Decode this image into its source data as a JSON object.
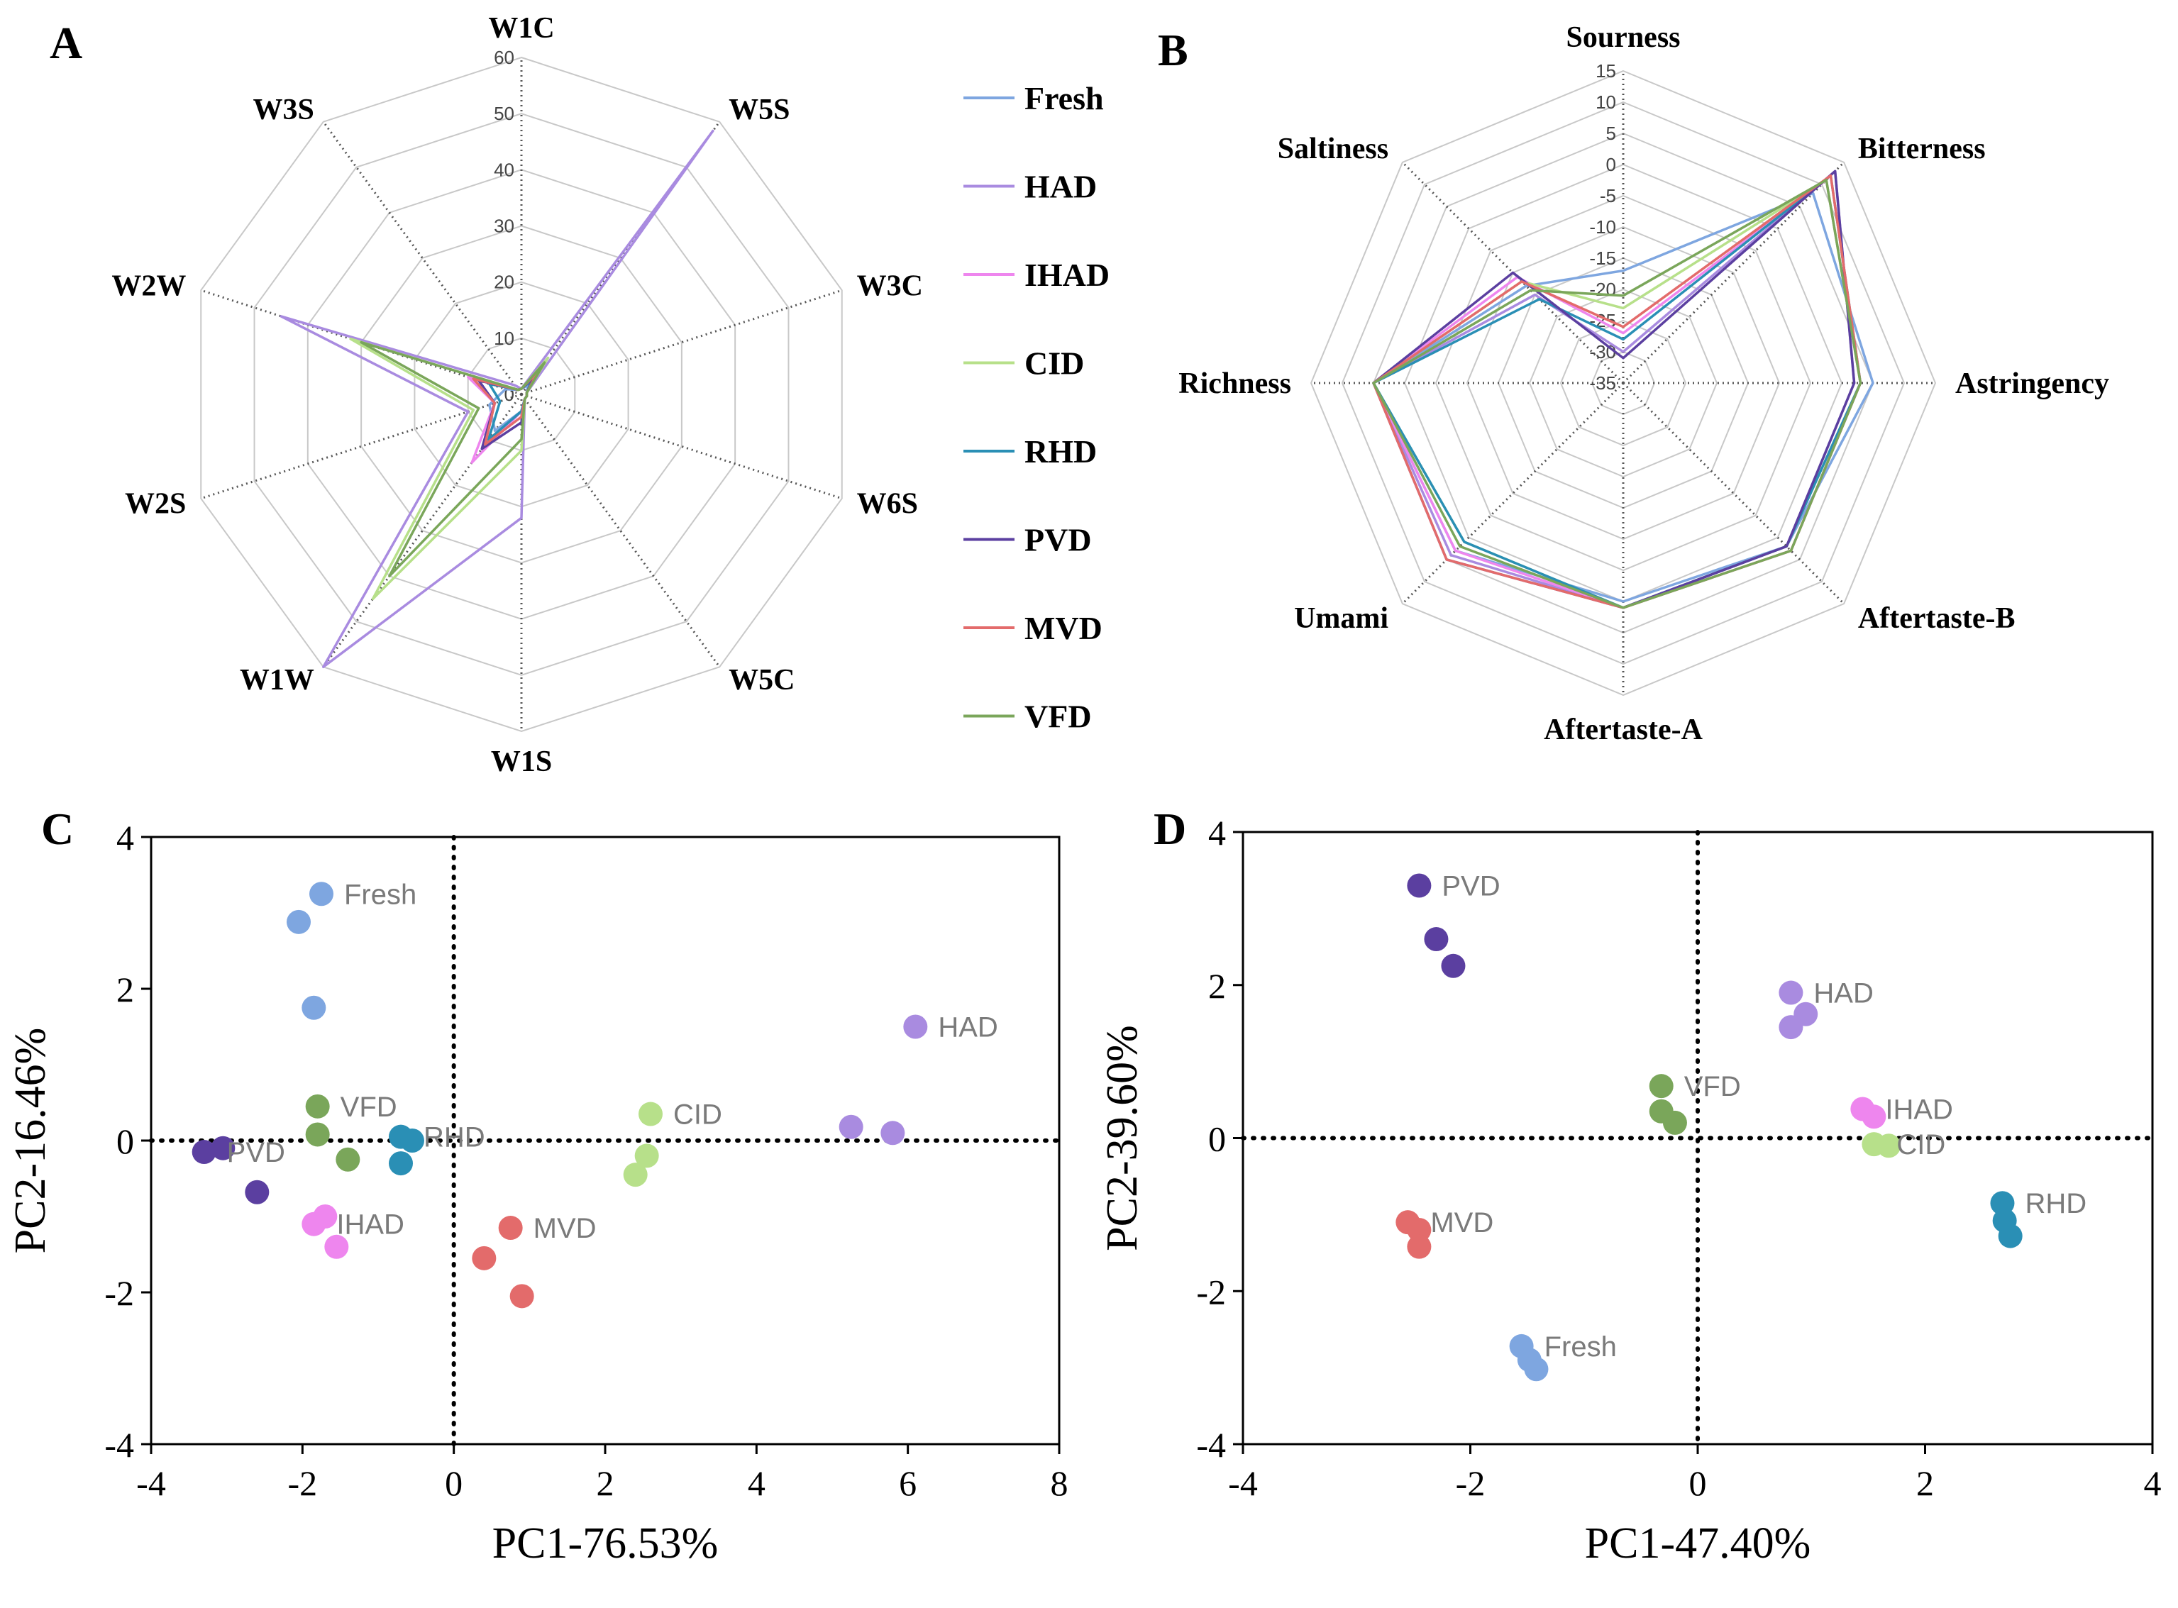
{
  "colors": {
    "Fresh": "#7ea6e0",
    "HAD": "#a98be0",
    "IHAD": "#ee86ee",
    "CID": "#b7e08a",
    "RHD": "#2a8fb5",
    "PVD": "#5b3fa0",
    "MVD": "#e36b6b",
    "VFD": "#7aa65a"
  },
  "chart_data": [
    {
      "panel": "A",
      "type": "radar",
      "axes": [
        "W1C",
        "W5S",
        "W3C",
        "W6S",
        "W5C",
        "W1S",
        "W1W",
        "W2S",
        "W2W",
        "W3S"
      ],
      "rlim": [
        0,
        60
      ],
      "rticks": [
        0,
        10,
        20,
        30,
        40,
        50,
        60
      ],
      "legend": [
        "Fresh",
        "HAD",
        "IHAD",
        "CID",
        "RHD",
        "PVD",
        "MVD",
        "VFD"
      ],
      "series": [
        {
          "name": "Fresh",
          "values": [
            1,
            2,
            1,
            1,
            1,
            3,
            8,
            6,
            3,
            1
          ]
        },
        {
          "name": "HAD",
          "values": [
            1,
            58,
            1,
            1,
            1,
            22,
            60,
            10,
            45,
            2
          ]
        },
        {
          "name": "IHAD",
          "values": [
            1,
            6,
            1,
            1,
            1,
            3,
            15,
            5,
            10,
            1
          ]
        },
        {
          "name": "CID",
          "values": [
            1,
            8,
            1,
            1,
            1,
            10,
            45,
            9,
            32,
            1
          ]
        },
        {
          "name": "RHD",
          "values": [
            1,
            3,
            1,
            1,
            1,
            3,
            10,
            4,
            6,
            1
          ]
        },
        {
          "name": "PVD",
          "values": [
            1,
            4,
            1,
            1,
            1,
            5,
            12,
            5,
            8,
            1
          ]
        },
        {
          "name": "MVD",
          "values": [
            1,
            5,
            1,
            1,
            1,
            4,
            11,
            5,
            9,
            1
          ]
        },
        {
          "name": "VFD",
          "values": [
            1,
            7,
            1,
            1,
            1,
            8,
            40,
            8,
            30,
            1
          ]
        }
      ]
    },
    {
      "panel": "B",
      "type": "radar",
      "axes": [
        "Sourness",
        "Bitterness",
        "Astringency",
        "Aftertaste-B",
        "Aftertaste-A",
        "Umami",
        "Richness",
        "Saltiness"
      ],
      "rlim": [
        -35,
        15
      ],
      "rticks": [
        15,
        10,
        5,
        0,
        -5,
        -10,
        -15,
        -20,
        -25,
        -30,
        -35
      ],
      "series": [
        {
          "name": "Fresh",
          "values": [
            -17,
            8,
            5,
            2,
            0,
            3,
            5,
            -13
          ]
        },
        {
          "name": "HAD",
          "values": [
            -30,
            13,
            2,
            2,
            1,
            4,
            5,
            -15
          ]
        },
        {
          "name": "IHAD",
          "values": [
            -27,
            11,
            3,
            3,
            1,
            3,
            5,
            -11
          ]
        },
        {
          "name": "CID",
          "values": [
            -23,
            11,
            3,
            2,
            1,
            1,
            5,
            -12
          ]
        },
        {
          "name": "RHD",
          "values": [
            -28,
            12,
            3,
            2,
            1,
            1,
            5,
            -16
          ]
        },
        {
          "name": "PVD",
          "values": [
            -31,
            13,
            2,
            2,
            1,
            5,
            5,
            -10
          ]
        },
        {
          "name": "MVD",
          "values": [
            -26,
            12,
            3,
            3,
            1,
            5,
            5,
            -12
          ]
        },
        {
          "name": "VFD",
          "values": [
            -21,
            11,
            3,
            3,
            1,
            2,
            5,
            -14
          ]
        }
      ]
    },
    {
      "panel": "C",
      "type": "scatter",
      "xlabel": "PC1-76.53%",
      "ylabel": "PC2-16.46%",
      "xlim": [
        -4,
        8
      ],
      "ylim": [
        -4,
        4
      ],
      "xticks": [
        -4,
        -2,
        0,
        2,
        4,
        6,
        8
      ],
      "yticks": [
        -4,
        -2,
        0,
        2,
        4
      ],
      "series": [
        {
          "name": "Fresh",
          "label": "Fresh",
          "points": [
            [
              -1.75,
              3.25
            ],
            [
              -2.05,
              2.88
            ],
            [
              -1.85,
              1.75
            ]
          ]
        },
        {
          "name": "HAD",
          "label": "HAD",
          "points": [
            [
              6.1,
              1.5
            ],
            [
              5.25,
              0.18
            ],
            [
              5.8,
              0.1
            ]
          ]
        },
        {
          "name": "CID",
          "label": "CID",
          "points": [
            [
              2.6,
              0.35
            ],
            [
              2.55,
              -0.2
            ],
            [
              2.4,
              -0.45
            ]
          ]
        },
        {
          "name": "VFD",
          "label": "VFD",
          "points": [
            [
              -1.8,
              0.45
            ],
            [
              -1.8,
              0.08
            ],
            [
              -1.4,
              -0.25
            ]
          ]
        },
        {
          "name": "RHD",
          "label": "RHD",
          "points": [
            [
              -0.7,
              0.05
            ],
            [
              -0.55,
              0.0
            ],
            [
              -0.7,
              -0.3
            ]
          ]
        },
        {
          "name": "PVD",
          "label": "PVD",
          "points": [
            [
              -3.3,
              -0.15
            ],
            [
              -3.05,
              -0.1
            ],
            [
              -2.6,
              -0.68
            ]
          ]
        },
        {
          "name": "IHAD",
          "label": "IHAD",
          "points": [
            [
              -1.85,
              -1.1
            ],
            [
              -1.7,
              -1.0
            ],
            [
              -1.55,
              -1.4
            ]
          ]
        },
        {
          "name": "MVD",
          "label": "MVD",
          "points": [
            [
              0.75,
              -1.15
            ],
            [
              0.4,
              -1.55
            ],
            [
              0.9,
              -2.05
            ]
          ]
        }
      ]
    },
    {
      "panel": "D",
      "type": "scatter",
      "xlabel": "PC1-47.40%",
      "ylabel": "PC2-39.60%",
      "xlim": [
        -4,
        4
      ],
      "ylim": [
        -4,
        4
      ],
      "xticks": [
        -4,
        -2,
        0,
        2,
        4
      ],
      "yticks": [
        -4,
        -2,
        0,
        2,
        4
      ],
      "series": [
        {
          "name": "PVD",
          "label": "PVD",
          "points": [
            [
              -2.45,
              3.3
            ],
            [
              -2.3,
              2.6
            ],
            [
              -2.15,
              2.25
            ]
          ]
        },
        {
          "name": "HAD",
          "label": "HAD",
          "points": [
            [
              0.82,
              1.9
            ],
            [
              0.95,
              1.62
            ],
            [
              0.82,
              1.45
            ]
          ]
        },
        {
          "name": "VFD",
          "label": "VFD",
          "points": [
            [
              -0.32,
              0.68
            ],
            [
              -0.32,
              0.35
            ],
            [
              -0.2,
              0.2
            ]
          ]
        },
        {
          "name": "IHAD",
          "label": "IHAD",
          "points": [
            [
              1.45,
              0.38
            ],
            [
              1.55,
              0.28
            ]
          ]
        },
        {
          "name": "CID",
          "label": "CID",
          "points": [
            [
              1.55,
              -0.08
            ],
            [
              1.68,
              -0.1
            ]
          ]
        },
        {
          "name": "RHD",
          "label": "RHD",
          "points": [
            [
              2.68,
              -0.85
            ],
            [
              2.7,
              -1.08
            ],
            [
              2.75,
              -1.28
            ]
          ]
        },
        {
          "name": "MVD",
          "label": "MVD",
          "points": [
            [
              -2.55,
              -1.1
            ],
            [
              -2.45,
              -1.2
            ],
            [
              -2.45,
              -1.42
            ]
          ]
        },
        {
          "name": "Fresh",
          "label": "Fresh",
          "points": [
            [
              -1.55,
              -2.72
            ],
            [
              -1.48,
              -2.9
            ],
            [
              -1.42,
              -3.02
            ]
          ]
        }
      ]
    }
  ],
  "panel_letters": {
    "A": "A",
    "B": "B",
    "C": "C",
    "D": "D"
  },
  "label_order": {
    "C": [
      "Fresh",
      "HAD",
      "CID",
      "VFD",
      "RHD",
      "PVD",
      "IHAD",
      "MVD"
    ],
    "D": [
      "PVD",
      "HAD",
      "VFD",
      "IHAD",
      "CID",
      "RHD",
      "MVD",
      "Fresh"
    ]
  }
}
